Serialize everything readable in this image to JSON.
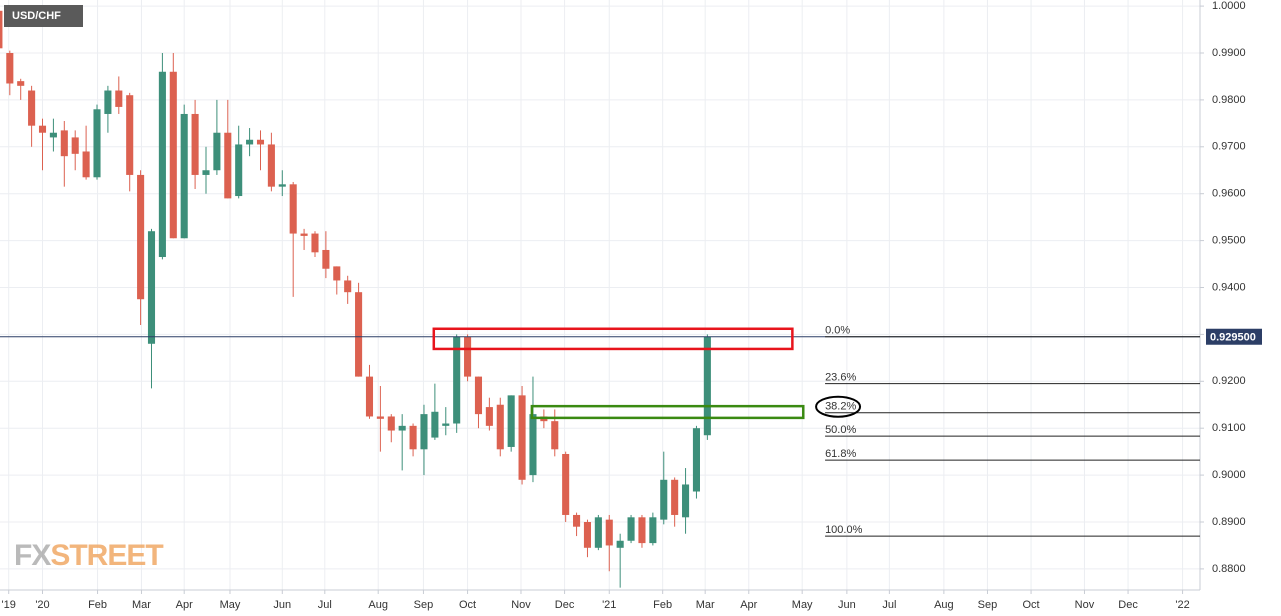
{
  "chart_data": {
    "type": "candlestick",
    "title": "USD/CHF",
    "watermark": {
      "left": "FX",
      "right": "STREET"
    },
    "up_color": "#3d8f7a",
    "down_color": "#dc6150",
    "grid": true,
    "x": [
      -4,
      -3,
      -2,
      -1,
      0,
      1,
      2,
      3,
      4,
      5,
      6,
      7,
      8,
      9,
      10,
      11,
      12,
      13,
      14,
      15,
      16,
      17,
      18,
      19,
      20,
      21,
      22,
      23,
      24,
      25,
      26,
      27,
      28,
      29,
      30,
      31,
      32,
      33,
      34,
      35,
      36,
      37,
      38,
      39,
      40,
      41,
      42,
      43,
      44,
      45,
      46,
      47,
      48,
      49,
      50,
      51,
      52,
      53,
      54,
      55,
      56,
      57,
      58,
      59,
      60,
      61
    ],
    "open": [
      0.999,
      0.99,
      0.984,
      0.982,
      0.9745,
      0.972,
      0.9735,
      0.972,
      0.969,
      0.9635,
      0.977,
      0.982,
      0.981,
      0.964,
      0.928,
      0.9465,
      0.986,
      0.9505,
      0.977,
      0.964,
      0.965,
      0.973,
      0.9595,
      0.9705,
      0.9715,
      0.9705,
      0.9615,
      0.962,
      0.9515,
      0.9515,
      0.948,
      0.9445,
      0.9415,
      0.939,
      0.921,
      0.9125,
      0.9125,
      0.9095,
      0.9105,
      0.9055,
      0.908,
      0.9105,
      0.911,
      0.9295,
      0.921,
      0.9145,
      0.915,
      0.906,
      0.917,
      0.9,
      0.9125,
      0.9115,
      0.9045,
      0.8915,
      0.89,
      0.8845,
      0.8905,
      0.8845,
      0.886,
      0.891,
      0.8855,
      0.8905,
      0.899,
      0.891,
      0.8965,
      0.9085
    ],
    "high": [
      1.0,
      0.9905,
      0.9845,
      0.983,
      0.976,
      0.976,
      0.9755,
      0.9735,
      0.9745,
      0.979,
      0.983,
      0.985,
      0.9815,
      0.965,
      0.9525,
      0.99,
      0.99,
      0.979,
      0.98,
      0.97,
      0.98,
      0.98,
      0.9745,
      0.974,
      0.9735,
      0.973,
      0.965,
      0.9625,
      0.9525,
      0.952,
      0.952,
      0.9445,
      0.9425,
      0.941,
      0.9235,
      0.919,
      0.913,
      0.913,
      0.911,
      0.915,
      0.9195,
      0.9145,
      0.93,
      0.93,
      0.921,
      0.9165,
      0.9165,
      0.917,
      0.919,
      0.921,
      0.914,
      0.914,
      0.905,
      0.892,
      0.8905,
      0.8915,
      0.8915,
      0.8875,
      0.8915,
      0.8915,
      0.892,
      0.905,
      0.8995,
      0.9015,
      0.9105,
      0.93
    ],
    "low": [
      0.988,
      0.981,
      0.98,
      0.97,
      0.965,
      0.969,
      0.9615,
      0.965,
      0.963,
      0.963,
      0.973,
      0.977,
      0.9605,
      0.932,
      0.9185,
      0.946,
      0.9505,
      0.9505,
      0.961,
      0.96,
      0.964,
      0.959,
      0.959,
      0.968,
      0.965,
      0.9605,
      0.9595,
      0.938,
      0.948,
      0.9465,
      0.942,
      0.9385,
      0.9365,
      0.921,
      0.912,
      0.905,
      0.907,
      0.901,
      0.904,
      0.9,
      0.9075,
      0.9085,
      0.909,
      0.92,
      0.91,
      0.9095,
      0.904,
      0.905,
      0.898,
      0.8985,
      0.91,
      0.904,
      0.89,
      0.887,
      0.8825,
      0.884,
      0.8795,
      0.876,
      0.8855,
      0.8845,
      0.885,
      0.8895,
      0.889,
      0.8875,
      0.895,
      0.9075
    ],
    "close": [
      0.991,
      0.9835,
      0.983,
      0.9745,
      0.973,
      0.973,
      0.968,
      0.9685,
      0.9635,
      0.978,
      0.982,
      0.9785,
      0.964,
      0.9375,
      0.952,
      0.986,
      0.9505,
      0.977,
      0.964,
      0.965,
      0.973,
      0.959,
      0.9705,
      0.9715,
      0.9705,
      0.9615,
      0.962,
      0.9515,
      0.951,
      0.9475,
      0.944,
      0.9415,
      0.939,
      0.921,
      0.9125,
      0.912,
      0.9095,
      0.9105,
      0.9055,
      0.913,
      0.9135,
      0.911,
      0.9295,
      0.921,
      0.913,
      0.9105,
      0.9055,
      0.917,
      0.899,
      0.913,
      0.9115,
      0.9055,
      0.8915,
      0.889,
      0.8845,
      0.891,
      0.885,
      0.886,
      0.891,
      0.8855,
      0.891,
      0.899,
      0.8915,
      0.898,
      0.91,
      0.9295
    ],
    "xlim": [
      -3.9,
      106.2
    ],
    "ylim": [
      0.8755,
      1.0013
    ],
    "xticks": [
      {
        "value": -3.1,
        "label": "'19"
      },
      {
        "value": 0,
        "label": "'20"
      },
      {
        "value": 5.05,
        "label": "Feb"
      },
      {
        "value": 9.08,
        "label": "Mar"
      },
      {
        "value": 13.0,
        "label": "Apr"
      },
      {
        "value": 17.2,
        "label": "May"
      },
      {
        "value": 22.0,
        "label": "Jun"
      },
      {
        "value": 25.9,
        "label": "Jul"
      },
      {
        "value": 30.8,
        "label": "Aug"
      },
      {
        "value": 34.95,
        "label": "Sep"
      },
      {
        "value": 39.0,
        "label": "Oct"
      },
      {
        "value": 43.9,
        "label": "Nov"
      },
      {
        "value": 47.9,
        "label": "Dec"
      },
      {
        "value": 52.0,
        "label": "'21"
      },
      {
        "value": 56.9,
        "label": "Feb"
      },
      {
        "value": 60.8,
        "label": "Mar"
      },
      {
        "value": 64.8,
        "label": "Apr"
      },
      {
        "value": 69.7,
        "label": "May"
      },
      {
        "value": 73.8,
        "label": "Jun"
      },
      {
        "value": 77.7,
        "label": "Jul"
      },
      {
        "value": 82.7,
        "label": "Aug"
      },
      {
        "value": 86.7,
        "label": "Sep"
      },
      {
        "value": 90.7,
        "label": "Oct"
      },
      {
        "value": 95.6,
        "label": "Nov"
      },
      {
        "value": 99.6,
        "label": "Dec"
      },
      {
        "value": 104.6,
        "label": "'22"
      }
    ],
    "yticks": [
      {
        "value": 1.0,
        "label": "1.0000"
      },
      {
        "value": 0.99,
        "label": "0.9900"
      },
      {
        "value": 0.98,
        "label": "0.9800"
      },
      {
        "value": 0.97,
        "label": "0.9700"
      },
      {
        "value": 0.96,
        "label": "0.9600"
      },
      {
        "value": 0.95,
        "label": "0.9500"
      },
      {
        "value": 0.94,
        "label": "0.9400"
      },
      {
        "value": 0.93,
        "label": "0.9300"
      },
      {
        "value": 0.92,
        "label": "0.9200"
      },
      {
        "value": 0.91,
        "label": "0.9100"
      },
      {
        "value": 0.9,
        "label": "0.9000"
      },
      {
        "value": 0.89,
        "label": "0.8900"
      },
      {
        "value": 0.88,
        "label": "0.8800"
      }
    ],
    "last_price": {
      "value": 0.9295,
      "label": "0.929500"
    },
    "fib_x_start": 71.8,
    "fib_levels": [
      {
        "value": 0.9295,
        "label": "0.0%"
      },
      {
        "value": 0.9195,
        "label": "23.6%"
      },
      {
        "value": 0.9133,
        "label": "38.2%"
      },
      {
        "value": 0.9083,
        "label": "50.0%"
      },
      {
        "value": 0.9032,
        "label": "61.8%"
      },
      {
        "value": 0.887,
        "label": "100.0%"
      }
    ],
    "zones": [
      {
        "color": "#e8141c",
        "xlim": [
          35.9,
          68.8
        ],
        "ylim": [
          0.9269,
          0.9312
        ]
      },
      {
        "color": "#3a8a12",
        "xlim": [
          44.9,
          69.8
        ],
        "ylim": [
          0.9122,
          0.9147
        ]
      }
    ]
  }
}
